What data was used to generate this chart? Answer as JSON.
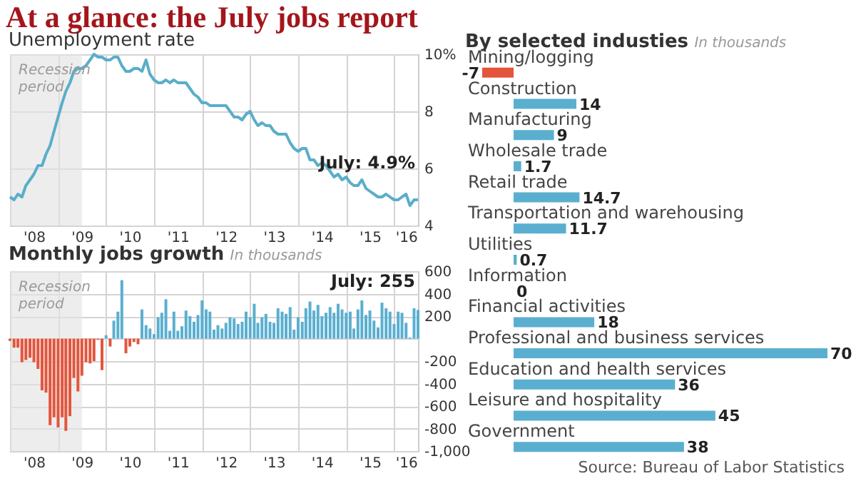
{
  "chart_data": [
    {
      "type": "line",
      "title": "At a glance: the July jobs report",
      "subtitle": "Unemployment rate",
      "x": [
        "2008-01",
        "2008-02",
        "2008-03",
        "2008-04",
        "2008-05",
        "2008-06",
        "2008-07",
        "2008-08",
        "2008-09",
        "2008-10",
        "2008-11",
        "2008-12",
        "2009-01",
        "2009-02",
        "2009-03",
        "2009-04",
        "2009-05",
        "2009-06",
        "2009-07",
        "2009-08",
        "2009-09",
        "2009-10",
        "2009-11",
        "2009-12",
        "2010-01",
        "2010-02",
        "2010-03",
        "2010-04",
        "2010-05",
        "2010-06",
        "2010-07",
        "2010-08",
        "2010-09",
        "2010-10",
        "2010-11",
        "2010-12",
        "2011-01",
        "2011-02",
        "2011-03",
        "2011-04",
        "2011-05",
        "2011-06",
        "2011-07",
        "2011-08",
        "2011-09",
        "2011-10",
        "2011-11",
        "2011-12",
        "2012-01",
        "2012-02",
        "2012-03",
        "2012-04",
        "2012-05",
        "2012-06",
        "2012-07",
        "2012-08",
        "2012-09",
        "2012-10",
        "2012-11",
        "2012-12",
        "2013-01",
        "2013-02",
        "2013-03",
        "2013-04",
        "2013-05",
        "2013-06",
        "2013-07",
        "2013-08",
        "2013-09",
        "2013-10",
        "2013-11",
        "2013-12",
        "2014-01",
        "2014-02",
        "2014-03",
        "2014-04",
        "2014-05",
        "2014-06",
        "2014-07",
        "2014-08",
        "2014-09",
        "2014-10",
        "2014-11",
        "2014-12",
        "2015-01",
        "2015-02",
        "2015-03",
        "2015-04",
        "2015-05",
        "2015-06",
        "2015-07",
        "2015-08",
        "2015-09",
        "2015-10",
        "2015-11",
        "2015-12",
        "2016-01",
        "2016-02",
        "2016-03",
        "2016-04",
        "2016-05",
        "2016-06",
        "2016-07"
      ],
      "series": [
        {
          "color": "#5aaec9",
          "values": [
            5.0,
            4.9,
            5.1,
            5.0,
            5.4,
            5.6,
            5.8,
            6.1,
            6.1,
            6.5,
            6.8,
            7.3,
            7.8,
            8.3,
            8.7,
            9.0,
            9.4,
            9.5,
            9.5,
            9.6,
            9.8,
            10.0,
            9.9,
            9.9,
            9.8,
            9.8,
            9.9,
            9.9,
            9.6,
            9.4,
            9.4,
            9.5,
            9.5,
            9.4,
            9.8,
            9.3,
            9.1,
            9.0,
            9.0,
            9.1,
            9.0,
            9.1,
            9.0,
            9.0,
            9.0,
            8.8,
            8.6,
            8.5,
            8.3,
            8.3,
            8.2,
            8.2,
            8.2,
            8.2,
            8.2,
            8.0,
            7.8,
            7.8,
            7.7,
            7.9,
            8.0,
            7.7,
            7.5,
            7.6,
            7.5,
            7.5,
            7.3,
            7.2,
            7.2,
            7.2,
            6.9,
            6.7,
            6.6,
            6.7,
            6.7,
            6.3,
            6.3,
            6.1,
            6.2,
            6.1,
            5.9,
            5.7,
            5.8,
            5.6,
            5.7,
            5.5,
            5.4,
            5.4,
            5.6,
            5.3,
            5.2,
            5.1,
            5.0,
            5.0,
            5.1,
            5.0,
            4.9,
            4.9,
            5.0,
            5.1,
            4.7,
            4.9,
            4.9
          ]
        }
      ],
      "xlim": [
        "2008-01",
        "2016-07"
      ],
      "xticks": [
        {
          "value": "2009",
          "label": null
        },
        {
          "value": "2010",
          "label": null
        },
        {
          "value": "2011",
          "label": null
        },
        {
          "value": "2012",
          "label": null
        },
        {
          "value": "2013",
          "label": null
        },
        {
          "value": "2014",
          "label": null
        },
        {
          "value": "2015",
          "label": null
        },
        {
          "value": "2016",
          "label": null
        },
        {
          "value": "2008-07",
          "label": "'08"
        },
        {
          "value": "2009-07",
          "label": "'09"
        },
        {
          "value": "2010-07",
          "label": "'10"
        },
        {
          "value": "2011-07",
          "label": "'11"
        },
        {
          "value": "2012-07",
          "label": "'12"
        },
        {
          "value": "2013-07",
          "label": "'13"
        },
        {
          "value": "2014-07",
          "label": "'14"
        },
        {
          "value": "2015-07",
          "label": "'15"
        },
        {
          "value": "2016-04",
          "label": "'16"
        }
      ],
      "ylim": [
        4,
        10
      ],
      "yticks": [
        4,
        6,
        8,
        {
          "value": 10,
          "label": "10%"
        }
      ],
      "grid": true,
      "bands": [
        {
          "axis": "x",
          "from": "2008-01",
          "to": "2009-07",
          "label": "Recession period",
          "color": "#e4e4e4"
        }
      ],
      "annotations": [
        {
          "text": "July: 4.9%",
          "x": "2016-07",
          "y": 4.9
        }
      ]
    },
    {
      "type": "bar",
      "title": "Monthly jobs growth",
      "subtitle": "In thousands",
      "x": [
        "2008-01",
        "2008-02",
        "2008-03",
        "2008-04",
        "2008-05",
        "2008-06",
        "2008-07",
        "2008-08",
        "2008-09",
        "2008-10",
        "2008-11",
        "2008-12",
        "2009-01",
        "2009-02",
        "2009-03",
        "2009-04",
        "2009-05",
        "2009-06",
        "2009-07",
        "2009-08",
        "2009-09",
        "2009-10",
        "2009-11",
        "2009-12",
        "2010-01",
        "2010-02",
        "2010-03",
        "2010-04",
        "2010-05",
        "2010-06",
        "2010-07",
        "2010-08",
        "2010-09",
        "2010-10",
        "2010-11",
        "2010-12",
        "2011-01",
        "2011-02",
        "2011-03",
        "2011-04",
        "2011-05",
        "2011-06",
        "2011-07",
        "2011-08",
        "2011-09",
        "2011-10",
        "2011-11",
        "2011-12",
        "2012-01",
        "2012-02",
        "2012-03",
        "2012-04",
        "2012-05",
        "2012-06",
        "2012-07",
        "2012-08",
        "2012-09",
        "2012-10",
        "2012-11",
        "2012-12",
        "2013-01",
        "2013-02",
        "2013-03",
        "2013-04",
        "2013-05",
        "2013-06",
        "2013-07",
        "2013-08",
        "2013-09",
        "2013-10",
        "2013-11",
        "2013-12",
        "2014-01",
        "2014-02",
        "2014-03",
        "2014-04",
        "2014-05",
        "2014-06",
        "2014-07",
        "2014-08",
        "2014-09",
        "2014-10",
        "2014-11",
        "2014-12",
        "2015-01",
        "2015-02",
        "2015-03",
        "2015-04",
        "2015-05",
        "2015-06",
        "2015-07",
        "2015-08",
        "2015-09",
        "2015-10",
        "2015-11",
        "2015-12",
        "2016-01",
        "2016-02",
        "2016-03",
        "2016-04",
        "2016-05",
        "2016-06",
        "2016-07"
      ],
      "values": [
        -20,
        -80,
        -80,
        -210,
        -190,
        -170,
        -210,
        -270,
        -460,
        -480,
        -770,
        -700,
        -790,
        -700,
        -820,
        -690,
        -350,
        -470,
        -330,
        -210,
        -220,
        -200,
        -10,
        -280,
        30,
        -70,
        160,
        240,
        520,
        -130,
        -70,
        -30,
        -50,
        260,
        120,
        90,
        40,
        190,
        230,
        350,
        70,
        240,
        70,
        110,
        250,
        200,
        150,
        210,
        340,
        260,
        240,
        80,
        120,
        90,
        140,
        190,
        180,
        130,
        150,
        240,
        190,
        310,
        140,
        190,
        220,
        150,
        140,
        270,
        240,
        220,
        280,
        80,
        190,
        150,
        270,
        330,
        250,
        300,
        200,
        230,
        280,
        230,
        310,
        260,
        230,
        240,
        90,
        260,
        340,
        210,
        250,
        160,
        100,
        320,
        270,
        240,
        130,
        240,
        230,
        140,
        10,
        270,
        255
      ],
      "colors": [
        "#e4553c",
        "#e4553c",
        "#e4553c",
        "#e4553c",
        "#e4553c",
        "#e4553c",
        "#e4553c",
        "#e4553c",
        "#e4553c",
        "#e4553c",
        "#e4553c",
        "#e4553c",
        "#e4553c",
        "#e4553c",
        "#e4553c",
        "#e4553c",
        "#e4553c",
        "#e4553c",
        "#e4553c",
        "#e4553c",
        "#e4553c",
        "#e4553c",
        "#e4553c",
        "#e4553c",
        "#5aafd0",
        "#e4553c",
        "#5aafd0",
        "#5aafd0",
        "#5aafd0",
        "#e4553c",
        "#e4553c",
        "#e4553c",
        "#e4553c",
        "#5aafd0",
        "#5aafd0",
        "#5aafd0",
        "#5aafd0",
        "#5aafd0",
        "#5aafd0",
        "#5aafd0",
        "#5aafd0",
        "#5aafd0",
        "#5aafd0",
        "#5aafd0",
        "#5aafd0",
        "#5aafd0",
        "#5aafd0",
        "#5aafd0",
        "#5aafd0",
        "#5aafd0",
        "#5aafd0",
        "#5aafd0",
        "#5aafd0",
        "#5aafd0",
        "#5aafd0",
        "#5aafd0",
        "#5aafd0",
        "#5aafd0",
        "#5aafd0",
        "#5aafd0",
        "#5aafd0",
        "#5aafd0",
        "#5aafd0",
        "#5aafd0",
        "#5aafd0",
        "#5aafd0",
        "#5aafd0",
        "#5aafd0",
        "#5aafd0",
        "#5aafd0",
        "#5aafd0",
        "#5aafd0",
        "#5aafd0",
        "#5aafd0",
        "#5aafd0",
        "#5aafd0",
        "#5aafd0",
        "#5aafd0",
        "#5aafd0",
        "#5aafd0",
        "#5aafd0",
        "#5aafd0",
        "#5aafd0",
        "#5aafd0",
        "#5aafd0",
        "#5aafd0",
        "#5aafd0",
        "#5aafd0",
        "#5aafd0",
        "#5aafd0",
        "#5aafd0",
        "#5aafd0",
        "#5aafd0",
        "#5aafd0",
        "#5aafd0",
        "#5aafd0",
        "#5aafd0",
        "#5aafd0",
        "#5aafd0",
        "#5aafd0",
        "#5aafd0",
        "#5aafd0",
        "#5aafd0"
      ],
      "xlim": [
        "2008-01",
        "2016-07"
      ],
      "xticks": [
        {
          "value": "2009",
          "label": null
        },
        {
          "value": "2010",
          "label": null
        },
        {
          "value": "2011",
          "label": null
        },
        {
          "value": "2012",
          "label": null
        },
        {
          "value": "2013",
          "label": null
        },
        {
          "value": "2014",
          "label": null
        },
        {
          "value": "2015",
          "label": null
        },
        {
          "value": "2016",
          "label": null
        },
        {
          "value": "2008-07",
          "label": "'08"
        },
        {
          "value": "2009-07",
          "label": "'09"
        },
        {
          "value": "2010-07",
          "label": "'10"
        },
        {
          "value": "2011-07",
          "label": "'11"
        },
        {
          "value": "2012-07",
          "label": "'12"
        },
        {
          "value": "2013-07",
          "label": "'13"
        },
        {
          "value": "2014-07",
          "label": "'14"
        },
        {
          "value": "2015-07",
          "label": "'15"
        },
        {
          "value": "2016-04",
          "label": "'16"
        }
      ],
      "ylim": [
        -1000,
        600
      ],
      "yticks": [
        600,
        400,
        200,
        {
          "value": 0,
          "label": null
        },
        -200,
        -400,
        -600,
        -800,
        {
          "value": -1000,
          "label": "-1,000"
        }
      ],
      "grid": true,
      "bands": [
        {
          "axis": "x",
          "from": "2008-01",
          "to": "2009-07",
          "label": "Recession period",
          "color": "#e4e4e4"
        }
      ],
      "annotations": [
        {
          "text": "July: 255",
          "x": "2016-07",
          "y": 255
        }
      ]
    },
    {
      "type": "bar",
      "orientation": "horizontal",
      "title": "By selected industies",
      "subtitle": "In thousands",
      "categories": [
        "Mining/logging",
        "Construction",
        "Manufacturing",
        "Wholesale trade",
        "Retail trade",
        "Transportation and warehousing",
        "Utilities",
        "Information",
        "Financial activities",
        "Professional and business services",
        "Education and health services",
        "Leisure and hospitality",
        "Government"
      ],
      "values": [
        -7,
        14,
        9,
        1.7,
        14.7,
        11.7,
        0.7,
        0,
        18,
        70,
        36,
        45,
        38
      ],
      "colors": [
        "#e4553c",
        "#5aafd0",
        "#5aafd0",
        "#5aafd0",
        "#5aafd0",
        "#5aafd0",
        "#5aafd0",
        "#5aafd0",
        "#5aafd0",
        "#5aafd0",
        "#5aafd0",
        "#5aafd0",
        "#5aafd0"
      ],
      "data_labels": true,
      "annotations": [
        "Source: Bureau of Labor Statistics"
      ]
    }
  ]
}
